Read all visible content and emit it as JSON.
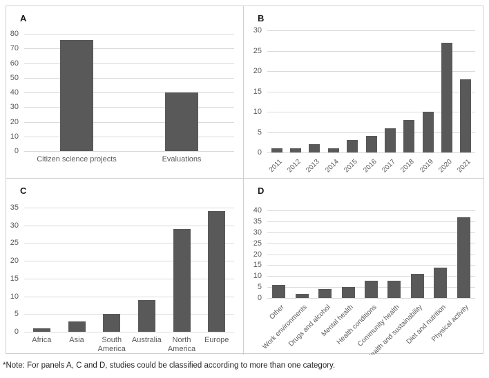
{
  "figure": {
    "note": "*Note: For panels A, C and D, studies could be classified according to more than one category."
  },
  "colors": {
    "bar": "#595959",
    "gridline": "#d9d9d9",
    "panel_border": "#cfcfcf",
    "tick_text": "#595959",
    "panel_label_text": "#1a1a1a",
    "note_text": "#262626"
  },
  "chart_data": [
    {
      "panel": "A",
      "type": "bar",
      "categories": [
        "Citizen science projects",
        "Evaluations"
      ],
      "values": [
        76,
        40
      ],
      "title": "",
      "xlabel": "",
      "ylabel": "",
      "ylim": [
        0,
        80
      ],
      "ytick": 10,
      "grid": true,
      "legend": "none",
      "label_rotation": 0
    },
    {
      "panel": "B",
      "type": "bar",
      "categories": [
        "2011",
        "2012",
        "2013",
        "2014",
        "2015",
        "2016",
        "2017",
        "2018",
        "2019",
        "2020",
        "2021"
      ],
      "values": [
        1,
        1,
        2,
        1,
        3,
        4,
        6,
        8,
        10,
        27,
        18
      ],
      "title": "",
      "xlabel": "",
      "ylabel": "",
      "ylim": [
        0,
        30
      ],
      "ytick": 5,
      "grid": true,
      "legend": "none",
      "label_rotation": 45
    },
    {
      "panel": "C",
      "type": "bar",
      "categories": [
        "Africa",
        "Asia",
        "South America",
        "Australia",
        "North America",
        "Europe"
      ],
      "values": [
        1,
        3,
        5,
        9,
        29,
        34
      ],
      "title": "",
      "xlabel": "",
      "ylabel": "",
      "ylim": [
        0,
        35
      ],
      "ytick": 5,
      "grid": true,
      "legend": "none",
      "label_rotation": 0
    },
    {
      "panel": "D",
      "type": "bar",
      "categories": [
        "Other",
        "Work environments",
        "Drugs and alcohol",
        "Mental health",
        "Health conditions",
        "Community health",
        "Health and sustainability",
        "Diet and nutrition",
        "Physical activity"
      ],
      "values": [
        6,
        2,
        4,
        5,
        8,
        8,
        11,
        14,
        37
      ],
      "title": "",
      "xlabel": "",
      "ylabel": "",
      "ylim": [
        0,
        40
      ],
      "ytick": 5,
      "grid": true,
      "legend": "none",
      "label_rotation": 45
    }
  ]
}
